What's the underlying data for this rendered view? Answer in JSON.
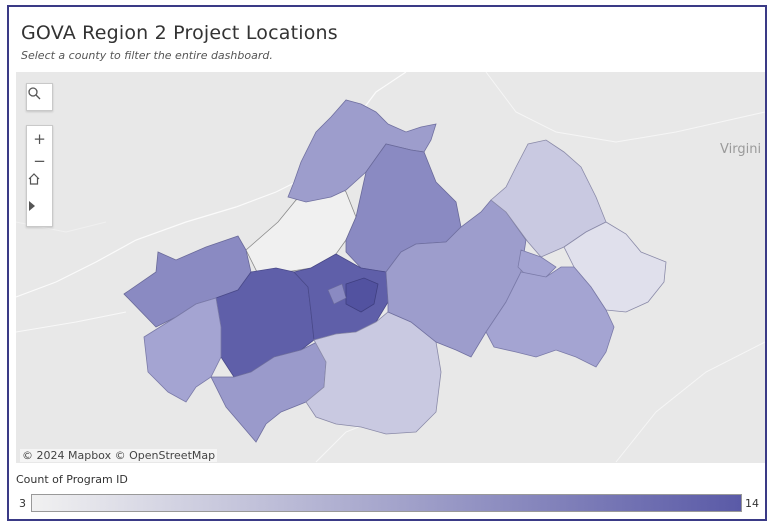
{
  "title": "GOVA Region 2 Project Locations",
  "subtitle": "Select a county to filter the entire dashboard.",
  "map": {
    "label_virginia": "Virgini",
    "attribution": "© 2024 Mapbox  © OpenStreetMap",
    "controls": {
      "search_icon": "search-icon",
      "zoom_in": "+",
      "zoom_out": "−",
      "home_icon": "home-icon",
      "expand_icon": "play-icon"
    },
    "colors": {
      "low": "#f1f1f1",
      "high": "#5a5aa7",
      "background": "#e9e9e9",
      "frame": "#3a3a86"
    }
  },
  "legend": {
    "title": "Count of Program ID",
    "min": "3",
    "max": "14"
  }
}
